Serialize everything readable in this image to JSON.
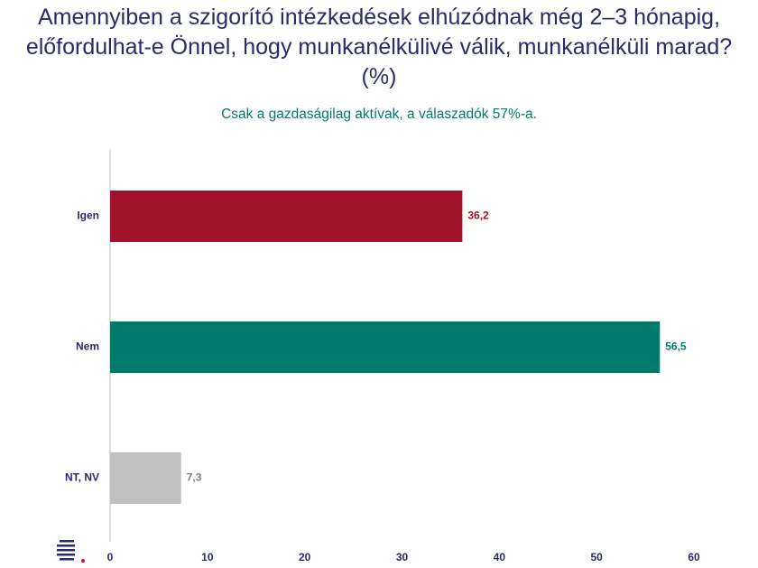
{
  "chart_data": {
    "type": "bar",
    "orientation": "horizontal",
    "title": "Amennyiben a szigorító intézkedések elhúzódnak még 2–3 hónapig, előfordulhat-e Önnel, hogy munkanélkülivé válik, munkanélküli marad? (%)",
    "subtitle": "Csak a gazdaságilag aktívak, a válaszadók 57%-a.",
    "categories": [
      "Igen",
      "Nem",
      "NT, NV"
    ],
    "values": [
      36.2,
      56.5,
      7.3
    ],
    "value_labels": [
      "36,2",
      "56,5",
      "7,3"
    ],
    "colors": [
      "#a0112a",
      "#007a6b",
      "#c0c0c0"
    ],
    "value_label_colors": [
      "#a0112a",
      "#007a6b",
      "#7f7f7f"
    ],
    "xlim": [
      0,
      60
    ],
    "xticks": [
      0,
      10,
      20,
      30,
      40,
      50,
      60
    ],
    "grid": false
  }
}
